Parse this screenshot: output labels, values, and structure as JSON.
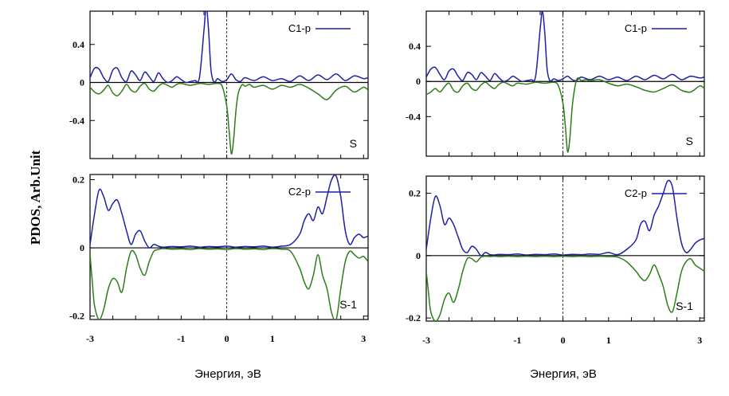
{
  "figure": {
    "ylabel": "PDOS, Arb.Unit",
    "xlabels": [
      "Энергия, эВ",
      "Энергия, эВ"
    ]
  },
  "colors": {
    "up": "#1f1fa8",
    "down": "#2e7d1a",
    "frame": "#000000",
    "fermi": "#000000"
  },
  "chart_data": [
    {
      "type": "line",
      "column": 0,
      "row": 0,
      "legend": "C1-p",
      "corner_label": "S",
      "xlim": [
        -3,
        3.1
      ],
      "ylim": [
        -0.8,
        0.75
      ],
      "xticks": [],
      "yticks": [
        0.4,
        0,
        -0.4
      ],
      "ytick_labels": [
        "0.4",
        "0",
        "-0.4"
      ],
      "series": [
        {
          "role": "up",
          "x": [
            -3,
            -2.9,
            -2.8,
            -2.7,
            -2.6,
            -2.5,
            -2.4,
            -2.3,
            -2.2,
            -2.1,
            -2,
            -1.9,
            -1.8,
            -1.7,
            -1.6,
            -1.5,
            -1.4,
            -1.3,
            -1.2,
            -1.1,
            -1,
            -0.9,
            -0.8,
            -0.7,
            -0.6,
            -0.5,
            -0.45,
            -0.4,
            -0.35,
            -0.3,
            -0.25,
            -0.2,
            -0.1,
            0,
            0.1,
            0.2,
            0.3,
            0.4,
            0.6,
            0.8,
            1,
            1.2,
            1.4,
            1.6,
            1.8,
            2,
            2.2,
            2.4,
            2.6,
            2.8,
            3,
            3.1
          ],
          "y": [
            0.05,
            0.15,
            0.14,
            0.05,
            0.01,
            0.13,
            0.15,
            0.05,
            0.01,
            0.12,
            0.08,
            0.02,
            0.11,
            0.06,
            0.01,
            0.1,
            0.04,
            0,
            0.02,
            0.06,
            0.03,
            0,
            0.01,
            0.02,
            0.05,
            0.55,
            0.8,
            0.55,
            0.15,
            0.02,
            0.01,
            0.04,
            0.01,
            0.03,
            0.09,
            0.03,
            0.01,
            0.05,
            0.02,
            0.06,
            0.02,
            0.04,
            0.01,
            0.07,
            0.02,
            0.08,
            0.03,
            0.09,
            0.02,
            0.07,
            0.04,
            0.05
          ]
        },
        {
          "role": "down",
          "x": [
            -3,
            -2.9,
            -2.8,
            -2.7,
            -2.6,
            -2.5,
            -2.4,
            -2.3,
            -2.2,
            -2.1,
            -2,
            -1.9,
            -1.8,
            -1.7,
            -1.6,
            -1.5,
            -1.4,
            -1.3,
            -1.2,
            -1.1,
            -1,
            -0.8,
            -0.6,
            -0.4,
            -0.2,
            -0.1,
            0,
            0.05,
            0.1,
            0.15,
            0.2,
            0.25,
            0.3,
            0.35,
            0.4,
            0.5,
            0.6,
            0.8,
            1,
            1.2,
            1.4,
            1.6,
            1.8,
            2,
            2.2,
            2.4,
            2.6,
            2.8,
            3,
            3.1
          ],
          "y": [
            -0.05,
            -0.1,
            -0.12,
            -0.08,
            -0.03,
            -0.11,
            -0.14,
            -0.09,
            -0.02,
            -0.08,
            -0.1,
            -0.04,
            -0.01,
            -0.07,
            -0.09,
            -0.04,
            -0.01,
            -0.03,
            -0.05,
            -0.02,
            -0.01,
            -0.03,
            -0.01,
            -0.02,
            -0.01,
            -0.04,
            -0.25,
            -0.5,
            -0.75,
            -0.6,
            -0.3,
            -0.12,
            -0.05,
            -0.02,
            -0.04,
            -0.02,
            -0.05,
            -0.03,
            -0.07,
            -0.03,
            -0.05,
            -0.02,
            -0.06,
            -0.12,
            -0.18,
            -0.08,
            -0.04,
            -0.1,
            -0.05,
            -0.08
          ]
        }
      ]
    },
    {
      "type": "line",
      "column": 0,
      "row": 1,
      "legend": "C2-p",
      "corner_label": "S-1",
      "xlim": [
        -3,
        3.1
      ],
      "ylim": [
        -0.21,
        0.215
      ],
      "xticks": [
        -3,
        -1,
        0,
        1,
        3
      ],
      "xtick_labels": [
        "-3",
        "-1",
        "0",
        "1",
        "3"
      ],
      "yticks": [
        0.2,
        0,
        -0.2
      ],
      "ytick_labels": [
        "0.2",
        "0",
        "-0.2"
      ],
      "series": [
        {
          "role": "up",
          "x": [
            -3,
            -2.9,
            -2.8,
            -2.7,
            -2.6,
            -2.5,
            -2.4,
            -2.3,
            -2.2,
            -2.1,
            -2,
            -1.9,
            -1.8,
            -1.7,
            -1.6,
            -1.5,
            -1.4,
            -1.2,
            -1,
            -0.8,
            -0.6,
            -0.4,
            -0.2,
            0,
            0.2,
            0.4,
            0.6,
            0.8,
            1,
            1.2,
            1.4,
            1.6,
            1.7,
            1.8,
            1.9,
            2,
            2.1,
            2.2,
            2.3,
            2.4,
            2.5,
            2.6,
            2.7,
            2.8,
            2.9,
            3,
            3.1
          ],
          "y": [
            0.01,
            0.1,
            0.17,
            0.15,
            0.11,
            0.13,
            0.14,
            0.1,
            0.05,
            0.01,
            0.04,
            0.05,
            0.02,
            0,
            0.01,
            0.005,
            0.002,
            0.004,
            0.003,
            0.005,
            0.002,
            0.004,
            0.003,
            0.005,
            0.002,
            0.004,
            0.003,
            0.005,
            0.002,
            0.005,
            0.01,
            0.04,
            0.08,
            0.1,
            0.08,
            0.12,
            0.1,
            0.15,
            0.2,
            0.21,
            0.15,
            0.05,
            0.01,
            0.03,
            0.04,
            0.03,
            0.035
          ]
        },
        {
          "role": "down",
          "x": [
            -3,
            -2.95,
            -2.9,
            -2.8,
            -2.7,
            -2.6,
            -2.5,
            -2.4,
            -2.3,
            -2.2,
            -2.1,
            -2,
            -1.9,
            -1.8,
            -1.7,
            -1.6,
            -1.5,
            -1.4,
            -1.2,
            -1,
            -0.8,
            -0.6,
            -0.4,
            -0.2,
            0,
            0.2,
            0.4,
            0.6,
            0.8,
            1,
            1.2,
            1.4,
            1.6,
            1.7,
            1.8,
            1.9,
            2,
            2.1,
            2.2,
            2.3,
            2.4,
            2.5,
            2.6,
            2.7,
            2.8,
            2.9,
            3,
            3.1
          ],
          "y": [
            -0.02,
            -0.1,
            -0.17,
            -0.21,
            -0.18,
            -0.12,
            -0.09,
            -0.1,
            -0.13,
            -0.06,
            -0.01,
            -0.02,
            -0.06,
            -0.08,
            -0.04,
            -0.01,
            -0.005,
            -0.002,
            -0.004,
            -0.003,
            -0.005,
            -0.002,
            -0.004,
            -0.003,
            -0.005,
            -0.002,
            -0.004,
            -0.003,
            -0.005,
            -0.002,
            -0.004,
            -0.01,
            -0.06,
            -0.1,
            -0.12,
            -0.08,
            -0.02,
            -0.08,
            -0.12,
            -0.19,
            -0.21,
            -0.12,
            -0.04,
            -0.01,
            -0.02,
            -0.03,
            -0.025,
            -0.04
          ]
        }
      ]
    },
    {
      "type": "line",
      "column": 1,
      "row": 0,
      "legend": "C1-p",
      "corner_label": "S",
      "xlim": [
        -3,
        3.1
      ],
      "ylim": [
        -0.85,
        0.8
      ],
      "xticks": [],
      "yticks": [
        0.4,
        0,
        -0.4
      ],
      "ytick_labels": [
        "0.4",
        "0",
        "-0.4"
      ],
      "series": [
        {
          "role": "up",
          "x": [
            -3,
            -2.9,
            -2.8,
            -2.7,
            -2.6,
            -2.5,
            -2.4,
            -2.3,
            -2.2,
            -2.1,
            -2,
            -1.9,
            -1.8,
            -1.7,
            -1.6,
            -1.5,
            -1.4,
            -1.3,
            -1.2,
            -1.1,
            -1,
            -0.9,
            -0.8,
            -0.7,
            -0.6,
            -0.5,
            -0.45,
            -0.4,
            -0.35,
            -0.3,
            -0.25,
            -0.2,
            -0.1,
            0,
            0.1,
            0.2,
            0.3,
            0.4,
            0.6,
            0.8,
            1,
            1.2,
            1.4,
            1.6,
            1.8,
            2,
            2.2,
            2.4,
            2.6,
            2.8,
            3,
            3.1
          ],
          "y": [
            0.05,
            0.14,
            0.16,
            0.08,
            0.02,
            0.12,
            0.14,
            0.06,
            0.01,
            0.1,
            0.08,
            0.02,
            0.1,
            0.06,
            0.01,
            0.09,
            0.04,
            0,
            0.02,
            0.06,
            0.03,
            0,
            0.01,
            0.02,
            0.06,
            0.6,
            0.8,
            0.55,
            0.15,
            0.02,
            0.01,
            0.03,
            0.01,
            0.03,
            0.06,
            0.02,
            0.01,
            0.05,
            0.02,
            0.06,
            0.02,
            0.05,
            0.01,
            0.06,
            0.02,
            0.07,
            0.03,
            0.08,
            0.02,
            0.06,
            0.04,
            0.05
          ]
        },
        {
          "role": "down",
          "x": [
            -3,
            -2.9,
            -2.8,
            -2.7,
            -2.6,
            -2.5,
            -2.4,
            -2.3,
            -2.2,
            -2.1,
            -2,
            -1.9,
            -1.8,
            -1.7,
            -1.6,
            -1.5,
            -1.4,
            -1.3,
            -1.2,
            -1.1,
            -1,
            -0.8,
            -0.6,
            -0.4,
            -0.2,
            -0.1,
            0,
            0.05,
            0.1,
            0.15,
            0.2,
            0.25,
            0.3,
            0.35,
            0.4,
            0.5,
            0.6,
            0.8,
            1,
            1.2,
            1.4,
            1.6,
            1.8,
            2,
            2.2,
            2.4,
            2.6,
            2.8,
            3,
            3.1
          ],
          "y": [
            -0.15,
            -0.12,
            -0.08,
            -0.12,
            -0.06,
            -0.02,
            -0.1,
            -0.12,
            -0.05,
            -0.02,
            -0.08,
            -0.1,
            -0.04,
            -0.01,
            -0.05,
            -0.08,
            -0.03,
            -0.01,
            -0.03,
            -0.05,
            -0.02,
            -0.03,
            -0.01,
            -0.02,
            -0.01,
            -0.05,
            -0.25,
            -0.5,
            -0.8,
            -0.65,
            -0.3,
            -0.1,
            0.02,
            0.04,
            0.01,
            0.02,
            0.01,
            0.02,
            -0.02,
            -0.05,
            -0.03,
            -0.06,
            -0.1,
            -0.12,
            -0.08,
            -0.04,
            -0.1,
            -0.12,
            -0.05,
            -0.08
          ]
        }
      ]
    },
    {
      "type": "line",
      "column": 1,
      "row": 1,
      "legend": "C2-p",
      "corner_label": "S-1",
      "xlim": [
        -3,
        3.1
      ],
      "ylim": [
        -0.21,
        0.255
      ],
      "xticks": [
        -3,
        -1,
        0,
        1,
        3
      ],
      "xtick_labels": [
        "-3",
        "-1",
        "0",
        "1",
        "3"
      ],
      "yticks": [
        0.2,
        0,
        -0.2
      ],
      "ytick_labels": [
        "0.2",
        "0",
        "-0.2"
      ],
      "series": [
        {
          "role": "up",
          "x": [
            -3,
            -2.9,
            -2.8,
            -2.7,
            -2.6,
            -2.5,
            -2.4,
            -2.3,
            -2.2,
            -2.1,
            -2,
            -1.9,
            -1.8,
            -1.7,
            -1.6,
            -1.5,
            -1.4,
            -1.2,
            -1,
            -0.8,
            -0.6,
            -0.4,
            -0.2,
            0,
            0.2,
            0.4,
            0.6,
            0.8,
            1,
            1.2,
            1.4,
            1.6,
            1.7,
            1.8,
            1.9,
            2,
            2.1,
            2.2,
            2.3,
            2.4,
            2.5,
            2.6,
            2.7,
            2.8,
            2.9,
            3,
            3.1
          ],
          "y": [
            0.02,
            0.12,
            0.19,
            0.16,
            0.1,
            0.12,
            0.1,
            0.06,
            0.02,
            0.01,
            0.03,
            0.02,
            0,
            0.01,
            0.003,
            0.002,
            0.004,
            0.003,
            0.005,
            0.002,
            0.004,
            0.003,
            0.005,
            0.002,
            0.004,
            0.003,
            0.005,
            0.004,
            0.01,
            0.003,
            0.02,
            0.05,
            0.1,
            0.11,
            0.08,
            0.13,
            0.16,
            0.2,
            0.24,
            0.22,
            0.12,
            0.04,
            0.01,
            0.02,
            0.04,
            0.05,
            0.055
          ]
        },
        {
          "role": "down",
          "x": [
            -3,
            -2.95,
            -2.9,
            -2.8,
            -2.7,
            -2.6,
            -2.5,
            -2.4,
            -2.3,
            -2.2,
            -2.1,
            -2,
            -1.9,
            -1.8,
            -1.7,
            -1.6,
            -1.5,
            -1.4,
            -1.2,
            -1,
            -0.8,
            -0.6,
            -0.4,
            -0.2,
            0,
            0.2,
            0.4,
            0.6,
            0.8,
            1,
            1.2,
            1.4,
            1.6,
            1.7,
            1.8,
            1.9,
            2,
            2.1,
            2.2,
            2.3,
            2.4,
            2.5,
            2.6,
            2.7,
            2.8,
            2.9,
            3,
            3.1
          ],
          "y": [
            -0.05,
            -0.12,
            -0.18,
            -0.21,
            -0.19,
            -0.14,
            -0.12,
            -0.15,
            -0.11,
            -0.05,
            -0.01,
            -0.01,
            -0.02,
            -0.005,
            -0.002,
            -0.003,
            -0.002,
            -0.003,
            -0.002,
            -0.003,
            -0.002,
            -0.003,
            -0.002,
            -0.003,
            -0.002,
            -0.003,
            -0.002,
            -0.003,
            -0.002,
            -0.003,
            -0.005,
            -0.02,
            -0.05,
            -0.07,
            -0.08,
            -0.06,
            -0.03,
            -0.06,
            -0.1,
            -0.16,
            -0.18,
            -0.12,
            -0.05,
            -0.02,
            -0.01,
            -0.03,
            -0.04,
            -0.05
          ]
        }
      ]
    }
  ]
}
